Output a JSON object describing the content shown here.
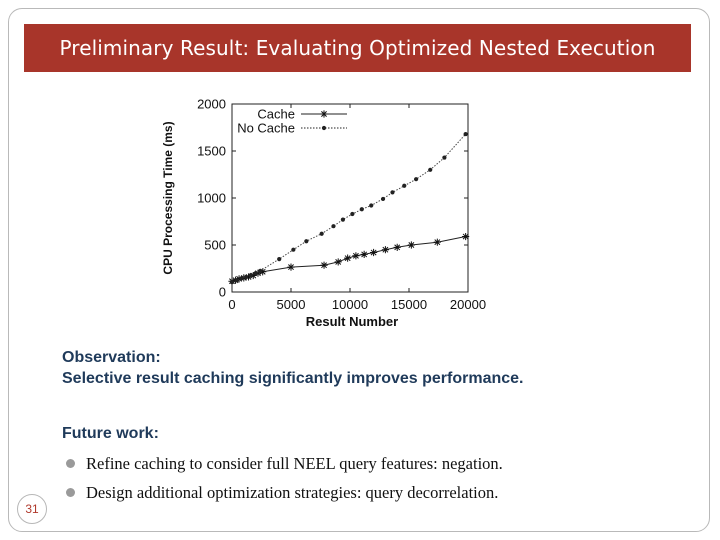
{
  "slide": {
    "title": "Preliminary Result: Evaluating Optimized Nested Execution",
    "observation_heading": "Observation:",
    "observation_text": "Selective result caching significantly improves performance.",
    "future_work_heading": "Future work:",
    "bullets": [
      "Refine caching to consider full NEEL query features: negation.",
      "Design additional optimization strategies: query decorrelation."
    ],
    "page_number": "31",
    "colors": {
      "title_bar": "#a8352a",
      "heading_text": "#1f3a5a",
      "page_number": "#b0392c"
    }
  },
  "chart_data": {
    "type": "line",
    "title": "",
    "xlabel": "Result Number",
    "ylabel": "CPU Processing Time (ms)",
    "xlim": [
      0,
      20000
    ],
    "ylim": [
      0,
      2000
    ],
    "xticks": [
      "0",
      "5000",
      "10000",
      "15000",
      "20000"
    ],
    "yticks": [
      "0",
      "500",
      "1000",
      "1500",
      "2000"
    ],
    "grid": false,
    "legend_position": "top-left",
    "series": [
      {
        "name": "Cache",
        "marker": "asterisk",
        "line_style": "solid",
        "x": [
          0,
          300,
          600,
          1000,
          1400,
          1800,
          2200,
          2600,
          5000,
          7800,
          9000,
          9800,
          10500,
          11200,
          12000,
          13000,
          14000,
          15200,
          17400,
          19800
        ],
        "y": [
          115,
          125,
          140,
          150,
          160,
          175,
          200,
          215,
          265,
          285,
          320,
          360,
          385,
          400,
          420,
          450,
          475,
          500,
          530,
          590
        ]
      },
      {
        "name": "No Cache",
        "marker": "dot",
        "line_style": "dotted",
        "x": [
          0,
          400,
          800,
          1200,
          1600,
          2000,
          2400,
          4000,
          5200,
          6300,
          7600,
          8600,
          9400,
          10200,
          11000,
          11800,
          12800,
          13600,
          14600,
          15600,
          16800,
          18000,
          19800
        ],
        "y": [
          105,
          125,
          145,
          160,
          180,
          200,
          225,
          350,
          450,
          540,
          620,
          700,
          770,
          830,
          880,
          920,
          990,
          1060,
          1130,
          1200,
          1300,
          1430,
          1680
        ]
      }
    ]
  }
}
